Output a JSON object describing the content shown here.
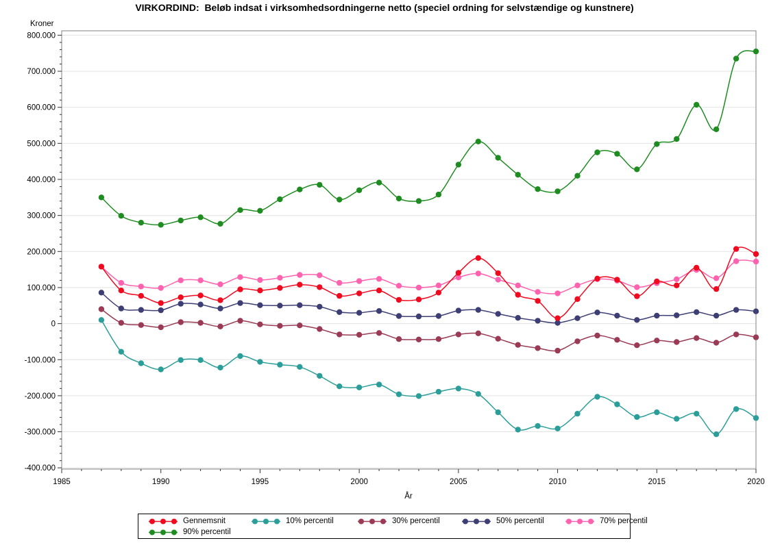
{
  "chart": {
    "title": "VIRKORDIND:  Beløb indsat i virksomhedsordningerne netto (speciel ordning for selvstændige og kunstnere)",
    "y_axis_title": "Kroner",
    "x_axis_title": "År"
  },
  "chart_data": {
    "type": "line",
    "title": "VIRKORDIND:  Beløb indsat i virksomhedsordningerne netto (speciel ordning for selvstændige og kunstnere)",
    "xlabel": "År",
    "ylabel": "Kroner",
    "xlim": [
      1985,
      2020
    ],
    "ylim": [
      -400000,
      800000
    ],
    "grid": "horizontal-major",
    "legend_position": "bottom",
    "x_tick_labels": [
      "1985",
      "1990",
      "1995",
      "2000",
      "2005",
      "2010",
      "2015",
      "2020"
    ],
    "x_tick_values": [
      1985,
      1990,
      1995,
      2000,
      2005,
      2010,
      2015,
      2020
    ],
    "y_tick_labels": [
      "800.000",
      "700.000",
      "600.000",
      "500.000",
      "400.000",
      "300.000",
      "200.000",
      "100.000",
      "0",
      "-100.000",
      "-200.000",
      "-300.000",
      "-400.000"
    ],
    "y_tick_values": [
      800000,
      700000,
      600000,
      500000,
      400000,
      300000,
      200000,
      100000,
      0,
      -100000,
      -200000,
      -300000,
      -400000
    ],
    "x": [
      1987,
      1988,
      1989,
      1990,
      1991,
      1992,
      1993,
      1994,
      1995,
      1996,
      1997,
      1998,
      1999,
      2000,
      2001,
      2002,
      2003,
      2004,
      2005,
      2006,
      2007,
      2008,
      2009,
      2010,
      2011,
      2012,
      2013,
      2014,
      2015,
      2016,
      2017,
      2018,
      2019,
      2020
    ],
    "series": [
      {
        "name": "Gennemsnit",
        "color": "#ef0a20",
        "values": [
          158000,
          92000,
          77000,
          57000,
          73000,
          78000,
          65000,
          95000,
          92000,
          99000,
          108000,
          101000,
          77000,
          84000,
          92000,
          66000,
          67000,
          86000,
          141000,
          182000,
          140000,
          80000,
          63000,
          15000,
          68000,
          125000,
          122000,
          76000,
          117000,
          106000,
          155000,
          96000,
          207000,
          193000
        ]
      },
      {
        "name": "10% percentil",
        "color": "#2b9e99",
        "values": [
          10000,
          -78000,
          -110000,
          -127000,
          -101000,
          -101000,
          -122000,
          -90000,
          -106000,
          -114000,
          -120000,
          -145000,
          -174000,
          -177000,
          -169000,
          -196000,
          -201000,
          -189000,
          -180000,
          -195000,
          -246000,
          -294000,
          -284000,
          -291000,
          -250000,
          -203000,
          -224000,
          -259000,
          -246000,
          -264000,
          -250000,
          -307000,
          -237000,
          -262000
        ]
      },
      {
        "name": "30% percentil",
        "color": "#9a3a55",
        "values": [
          40000,
          2000,
          -4000,
          -10000,
          4000,
          2000,
          -8000,
          8000,
          -2000,
          -6000,
          -5000,
          -15000,
          -30000,
          -31000,
          -26000,
          -43000,
          -44000,
          -43000,
          -30000,
          -27000,
          -42000,
          -59000,
          -68000,
          -75000,
          -49000,
          -33000,
          -45000,
          -60000,
          -47000,
          -51000,
          -40000,
          -53000,
          -30000,
          -38000
        ]
      },
      {
        "name": "50% percentil",
        "color": "#3d3e74",
        "values": [
          86000,
          42000,
          38000,
          37000,
          55000,
          53000,
          42000,
          57000,
          51000,
          50000,
          51000,
          47000,
          32000,
          30000,
          35000,
          21000,
          20000,
          21000,
          36000,
          38000,
          27000,
          16000,
          8000,
          2000,
          15000,
          31000,
          22000,
          10000,
          22000,
          23000,
          32000,
          22000,
          38000,
          34000
        ]
      },
      {
        "name": "70% percentil",
        "color": "#ff62ae",
        "values": [
          158000,
          113000,
          103000,
          99000,
          120000,
          120000,
          109000,
          129000,
          121000,
          127000,
          135000,
          134000,
          113000,
          118000,
          124000,
          105000,
          100000,
          106000,
          128000,
          139000,
          122000,
          106000,
          88000,
          84000,
          106000,
          123000,
          119000,
          101000,
          112000,
          123000,
          149000,
          126000,
          173000,
          172000
        ]
      },
      {
        "name": "90% percentil",
        "color": "#1f8c21",
        "values": [
          350000,
          299000,
          280000,
          274000,
          286000,
          295000,
          277000,
          315000,
          313000,
          345000,
          372000,
          385000,
          344000,
          370000,
          391000,
          347000,
          340000,
          358000,
          441000,
          505000,
          460000,
          413000,
          373000,
          367000,
          410000,
          475000,
          471000,
          428000,
          498000,
          512000,
          607000,
          539000,
          735000,
          755000
        ]
      }
    ]
  }
}
